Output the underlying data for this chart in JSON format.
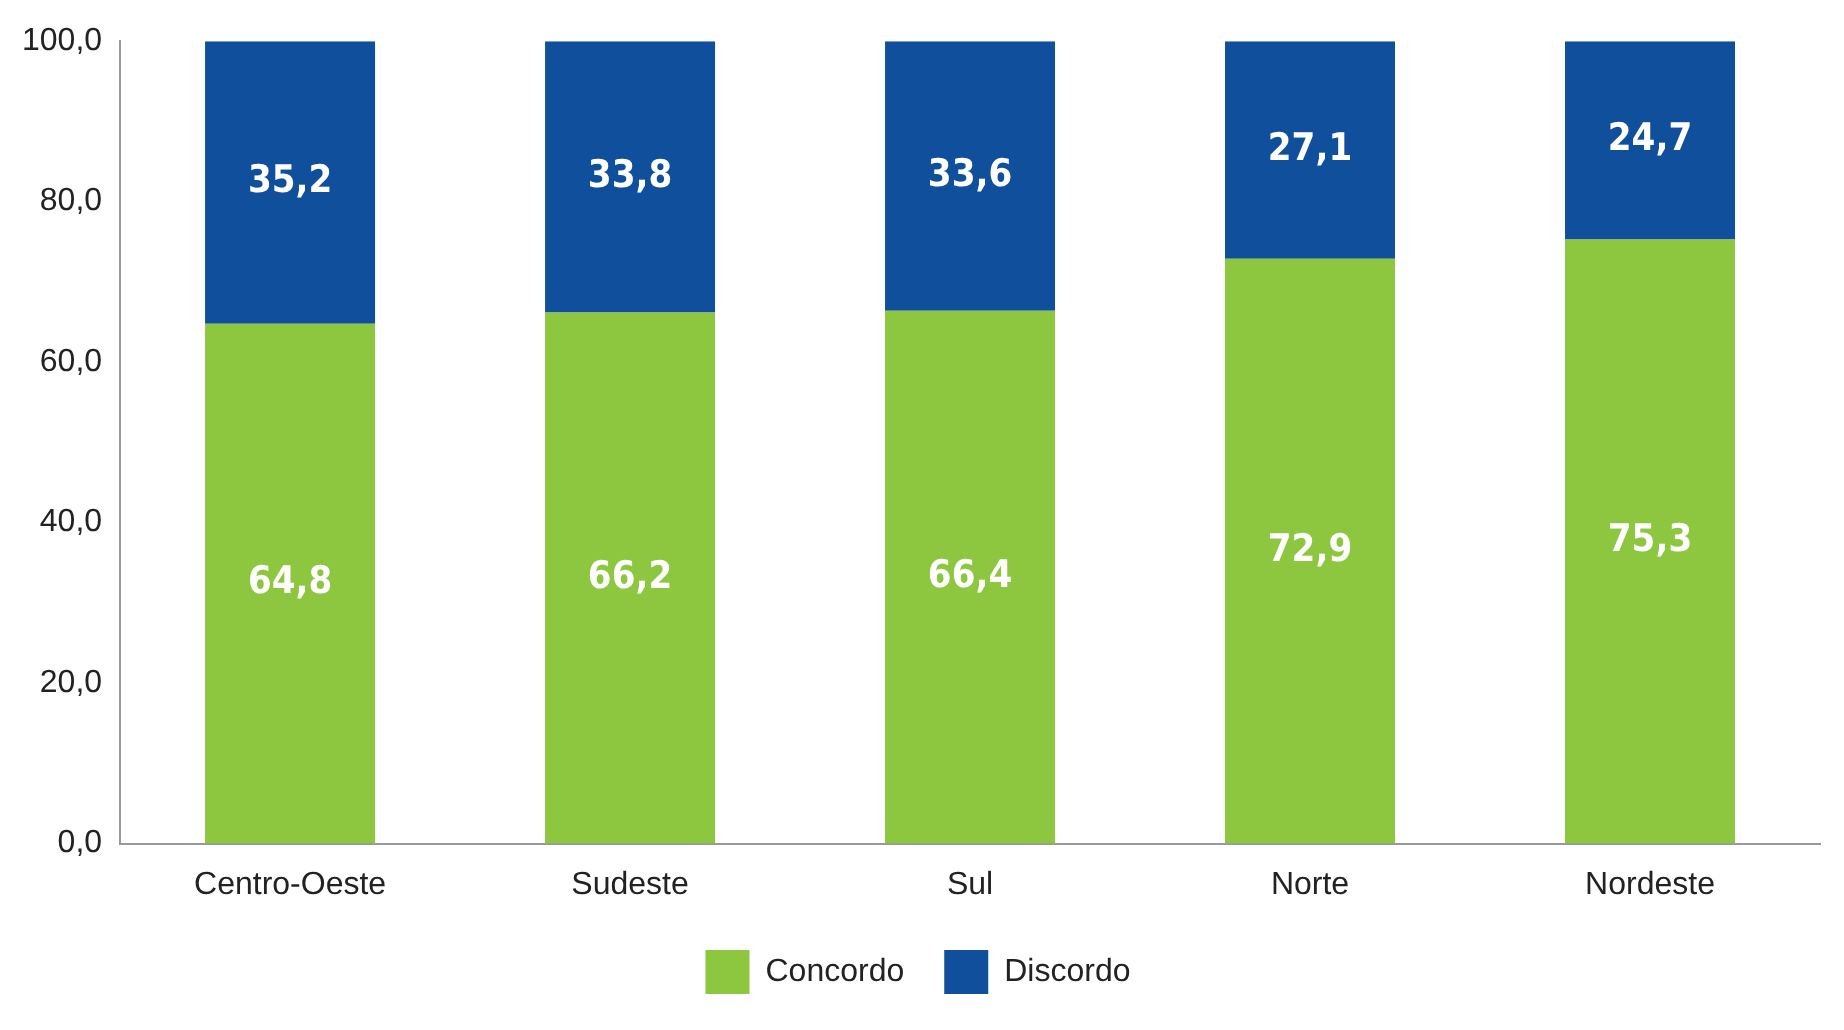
{
  "chart_data": {
    "type": "bar",
    "stacked": true,
    "categories": [
      "Centro-Oeste",
      "Sudeste",
      "Sul",
      "Norte",
      "Nordeste"
    ],
    "series": [
      {
        "name": "Concordo",
        "color": "#8dc63f",
        "values": [
          64.8,
          66.2,
          66.4,
          72.9,
          75.3
        ],
        "value_labels": [
          "64,8",
          "66,2",
          "66,4",
          "72,9",
          "75,3"
        ]
      },
      {
        "name": "Discordo",
        "color": "#0f4f9b",
        "values": [
          35.2,
          33.8,
          33.6,
          27.1,
          24.7
        ],
        "value_labels": [
          "35,2",
          "33,8",
          "33,6",
          "27,1",
          "24,7"
        ]
      }
    ],
    "ylim": [
      0,
      100
    ],
    "yticks": [
      {
        "value": 0,
        "label": "0,0"
      },
      {
        "value": 20,
        "label": "20,0"
      },
      {
        "value": 40,
        "label": "40,0"
      },
      {
        "value": 60,
        "label": "60,0"
      },
      {
        "value": 80,
        "label": "80,0"
      },
      {
        "value": 100,
        "label": "100,0"
      }
    ],
    "grid": false,
    "legend": "bottom"
  }
}
